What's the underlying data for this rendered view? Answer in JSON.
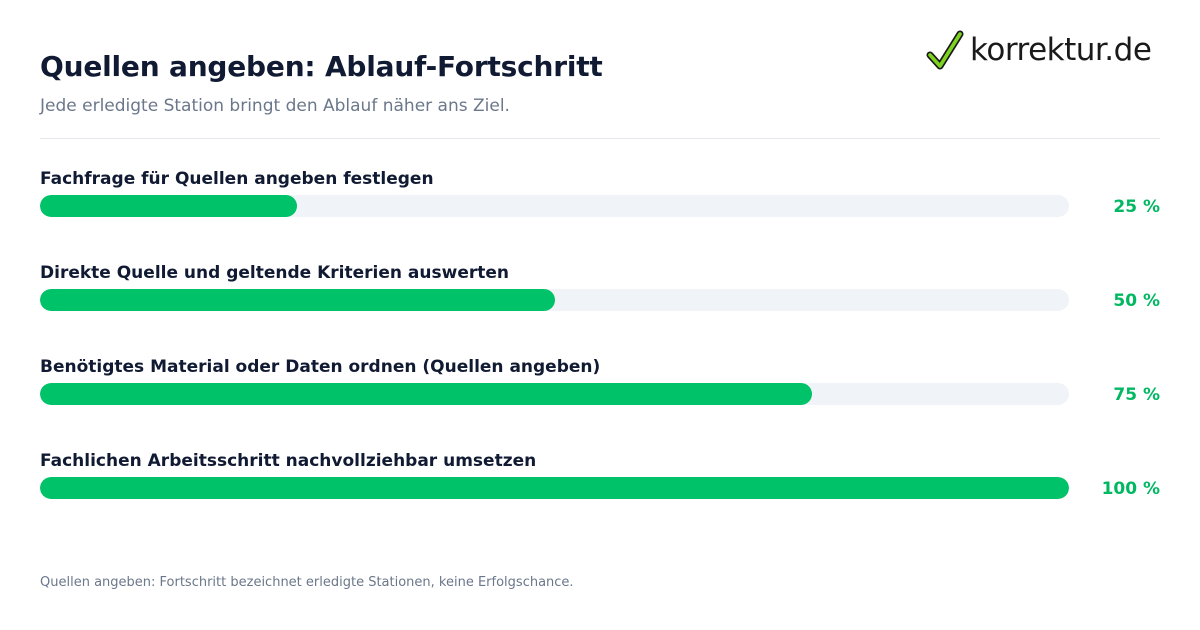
{
  "header": {
    "title": "Quellen angeben: Ablauf-Fortschritt",
    "subtitle": "Jede erledigte Station bringt den Ablauf näher ans Ziel."
  },
  "logo": {
    "text": "korrektur.de",
    "icon": "checkmark-icon"
  },
  "chart_data": {
    "type": "bar",
    "orientation": "horizontal",
    "categories": [
      "Fachfrage für Quellen angeben festlegen",
      "Direkte Quelle und geltende Kriterien auswerten",
      "Benötigtes Material oder Daten ordnen (Quellen angeben)",
      "Fachlichen Arbeitsschritt nachvollziehbar umsetzen"
    ],
    "values": [
      25,
      50,
      75,
      100
    ],
    "value_labels": [
      "25 %",
      "50 %",
      "75 %",
      "100 %"
    ],
    "xlim": [
      0,
      100
    ],
    "title": "Quellen angeben: Ablauf-Fortschritt",
    "subtitle": "Jede erledigte Station bringt den Ablauf näher ans Ziel.",
    "grid": false,
    "legend": "none",
    "colors": {
      "fill": "#00c268",
      "track": "#f0f3f8",
      "value_text": "#00b862"
    }
  },
  "footer": {
    "note": "Quellen angeben: Fortschritt bezeichnet erledigte Stationen, keine Erfolgschance."
  }
}
